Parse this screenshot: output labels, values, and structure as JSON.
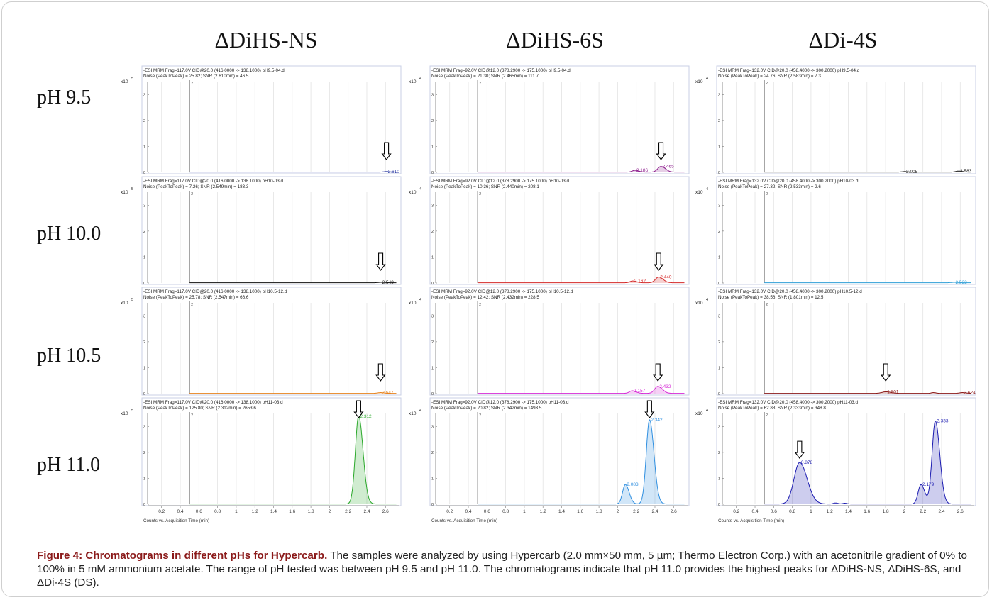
{
  "columns": [
    "ΔDiHS-NS",
    "ΔDiHS-6S",
    "ΔDi-4S"
  ],
  "rows": [
    "pH 9.5",
    "pH 10.0",
    "pH 10.5",
    "pH 11.0"
  ],
  "caption": {
    "title": "Figure 4: Chromatograms in different pHs for Hypercarb.",
    "text": " The samples were analyzed by using Hypercarb (2.0 mm×50 mm, 5 µm; Thermo Electron Corp.) with an acetonitrile gradient of 0% to 100% in 5 mM ammonium acetate. The range of pH tested was between pH 9.5 and pH 11.0. The chromatograms indicate that pH 11.0 provides the highest peaks for ΔDiHS-NS, ΔDiHS-6S, and ΔDi-4S (DS)."
  },
  "chart_data": [
    {
      "type": "line",
      "row": 0,
      "col": 0,
      "header": "-ESI MRM Frag=117.0V CID@20.0 (416.0000 -> 138.1000) pH9.5-04.d",
      "noise": "Noise (PeakToPeak) = 25.82; SNR (2.610min) = 46.5",
      "scale": "x10",
      "exp": "5",
      "color": "#1f2f9e",
      "ylim": [
        0,
        3.5
      ],
      "yticks": [
        "0",
        "1",
        "2",
        "3"
      ],
      "peaks": [
        {
          "t": 2.61,
          "h": 0.02,
          "w": 0.03,
          "label": "2.610",
          "arrow": true
        }
      ]
    },
    {
      "type": "line",
      "row": 0,
      "col": 1,
      "header": "-ESI MRM Frag=92.0V CID@12.0 (378.2900 -> 175.1000) pH9.5-04.d",
      "noise": "Noise (PeakToPeak) = 21.30; SNR (2.465min) = 111.7",
      "scale": "x10",
      "exp": "4",
      "color": "#8e1f8e",
      "ylim": [
        0,
        3.5
      ],
      "yticks": [
        "0",
        "1",
        "2",
        "3"
      ],
      "peaks": [
        {
          "t": 2.186,
          "h": 0.07,
          "w": 0.03,
          "label": "2.186"
        },
        {
          "t": 2.465,
          "h": 0.22,
          "w": 0.035,
          "label": "2.465",
          "arrow": true
        }
      ]
    },
    {
      "type": "line",
      "row": 0,
      "col": 2,
      "header": "-ESI MRM Frag=132.0V CID@20.0 (458.4000 -> 300.2000) pH9.5-04.d",
      "noise": "Noise (PeakToPeak) = 24.76; SNR (2.583min) = 7.3",
      "scale": "x10",
      "exp": "4",
      "color": "#111111",
      "ylim": [
        0,
        3.5
      ],
      "yticks": [
        "0",
        "1",
        "2",
        "3"
      ],
      "peaks": [
        {
          "t": 2.005,
          "h": 0.02,
          "w": 0.03,
          "label": "2.005"
        },
        {
          "t": 2.583,
          "h": 0.04,
          "w": 0.03,
          "label": "2.583"
        }
      ]
    },
    {
      "type": "line",
      "row": 1,
      "col": 0,
      "header": "-ESI MRM Frag=117.0V CID@20.0 (416.0000 -> 138.1000) pH10-03.d",
      "noise": "Noise (PeakToPeak) = 7.26; SNR (2.549min) = 183.3",
      "scale": "x10",
      "exp": "5",
      "color": "#111111",
      "ylim": [
        0,
        3.5
      ],
      "yticks": [
        "0",
        "1",
        "2",
        "3"
      ],
      "peaks": [
        {
          "t": 2.549,
          "h": 0.02,
          "w": 0.03,
          "label": "2.549",
          "arrow": true
        }
      ]
    },
    {
      "type": "line",
      "row": 1,
      "col": 1,
      "header": "-ESI MRM Frag=92.0V CID@12.0 (378.2900 -> 175.1000) pH10-03.d",
      "noise": "Noise (PeakToPeak) = 10.36; SNR (2.440min) = 208.1",
      "scale": "x10",
      "exp": "4",
      "color": "#d42a2a",
      "ylim": [
        0,
        3.5
      ],
      "yticks": [
        "0",
        "1",
        "2",
        "3"
      ],
      "peaks": [
        {
          "t": 2.162,
          "h": 0.07,
          "w": 0.03,
          "label": "2.162"
        },
        {
          "t": 2.44,
          "h": 0.22,
          "w": 0.035,
          "label": "2.440",
          "arrow": true
        }
      ]
    },
    {
      "type": "line",
      "row": 1,
      "col": 2,
      "header": "-ESI MRM Frag=132.0V CID@20.0 (458.4000 -> 300.2000) pH10-03.d",
      "noise": "Noise (PeakToPeak) = 27.32; SNR (2.533min) = 2.6",
      "scale": "x10",
      "exp": "4",
      "color": "#2f9fd8",
      "ylim": [
        0,
        3.5
      ],
      "yticks": [
        "0",
        "1",
        "2",
        "3"
      ],
      "peaks": [
        {
          "t": 2.533,
          "h": 0.02,
          "w": 0.03,
          "label": "2.533"
        }
      ]
    },
    {
      "type": "line",
      "row": 2,
      "col": 0,
      "header": "-ESI MRM Frag=117.0V CID@20.0 (416.0000 -> 138.1000) pH10.5-12.d",
      "noise": "Noise (PeakToPeak) = 25.78; SNR (2.547min) = 66.6",
      "scale": "x10",
      "exp": "5",
      "color": "#e8821c",
      "ylim": [
        0,
        3.5
      ],
      "yticks": [
        "0",
        "1",
        "2",
        "3"
      ],
      "peaks": [
        {
          "t": 2.547,
          "h": 0.03,
          "w": 0.03,
          "label": "2.547",
          "arrow": true
        }
      ]
    },
    {
      "type": "line",
      "row": 2,
      "col": 1,
      "header": "-ESI MRM Frag=92.0V CID@12.0 (378.2900 -> 175.1000) pH10.5-12.d",
      "noise": "Noise (PeakToPeak) = 12.42; SNR (2.432min) = 228.5",
      "scale": "x10",
      "exp": "4",
      "color": "#d62ad6",
      "ylim": [
        0,
        3.5
      ],
      "yticks": [
        "0",
        "1",
        "2",
        "3"
      ],
      "peaks": [
        {
          "t": 2.157,
          "h": 0.1,
          "w": 0.03,
          "label": "2.157"
        },
        {
          "t": 2.432,
          "h": 0.27,
          "w": 0.035,
          "label": "2.432",
          "arrow": true
        }
      ]
    },
    {
      "type": "line",
      "row": 2,
      "col": 2,
      "header": "-ESI MRM Frag=132.0V CID@20.0 (458.4000 -> 300.2000) pH10.5-12.d",
      "noise": "Noise (PeakToPeak) = 38.56; SNR (1.801min) = 12.5",
      "scale": "x10",
      "exp": "4",
      "color": "#8b1a1a",
      "ylim": [
        0,
        3.5
      ],
      "yticks": [
        "0",
        "1",
        "2",
        "3"
      ],
      "peaks": [
        {
          "t": 1.801,
          "h": 0.06,
          "w": 0.04,
          "label": "1.801",
          "arrow": true
        },
        {
          "t": 2.31,
          "h": 0.03,
          "w": 0.02
        },
        {
          "t": 2.624,
          "h": 0.03,
          "w": 0.03,
          "label": "2.624"
        }
      ]
    },
    {
      "type": "line",
      "row": 3,
      "col": 0,
      "header": "-ESI MRM Frag=117.0V CID@20.0 (416.0000 -> 138.1000) pH11-03.d",
      "noise": "Noise (PeakToPeak) = 125.80; SNR (2.312min) = 2653.6",
      "scale": "x10",
      "exp": "5",
      "color": "#2aa82a",
      "ylim": [
        0,
        3.5
      ],
      "yticks": [
        "0",
        "1",
        "2",
        "3"
      ],
      "peaks": [
        {
          "t": 2.312,
          "h": 3.4,
          "w": 0.035,
          "label": "2.312",
          "arrow": true
        }
      ]
    },
    {
      "type": "line",
      "row": 3,
      "col": 1,
      "header": "-ESI MRM Frag=92.0V CID@12.0 (378.2900 -> 175.1000) pH11-03.d",
      "noise": "Noise (PeakToPeak) = 20.82; SNR (2.342min) = 1493.5",
      "scale": "x10",
      "exp": "4",
      "color": "#2f8fe0",
      "ylim": [
        0,
        3.5
      ],
      "yticks": [
        "0",
        "1",
        "2",
        "3"
      ],
      "peaks": [
        {
          "t": 2.083,
          "h": 0.75,
          "w": 0.03,
          "label": "2.083"
        },
        {
          "t": 2.342,
          "h": 3.25,
          "w": 0.035,
          "label": "2.342",
          "arrow": true
        }
      ]
    },
    {
      "type": "line",
      "row": 3,
      "col": 2,
      "header": "-ESI MRM Frag=132.0V CID@20.0 (458.4000 -> 300.2000) pH11-03.d",
      "noise": "Noise (PeakToPeak) = 62.88; SNR (2.333min) = 348.8",
      "scale": "x10",
      "exp": "4",
      "color": "#1a1ab0",
      "ylim": [
        0,
        3.5
      ],
      "yticks": [
        "0",
        "1",
        "2",
        "3"
      ],
      "peaks": [
        {
          "t": 0.878,
          "h": 1.6,
          "w": 0.06,
          "label": "0.878",
          "arrow": true
        },
        {
          "t": 1.26,
          "h": 0.04,
          "w": 0.02
        },
        {
          "t": 1.36,
          "h": 0.03,
          "w": 0.02
        },
        {
          "t": 2.179,
          "h": 0.75,
          "w": 0.03,
          "label": "2.179"
        },
        {
          "t": 2.333,
          "h": 3.2,
          "w": 0.035,
          "label": "2.333"
        }
      ]
    }
  ],
  "x_ticks": [
    "0.2",
    "0.4",
    "0.6",
    "0.8",
    "1",
    "1.2",
    "1.4",
    "1.6",
    "1.8",
    "2",
    "2.2",
    "2.4",
    "2.6"
  ],
  "x_label": "Counts vs. Acquisition Time (min)",
  "marker_label": "2"
}
